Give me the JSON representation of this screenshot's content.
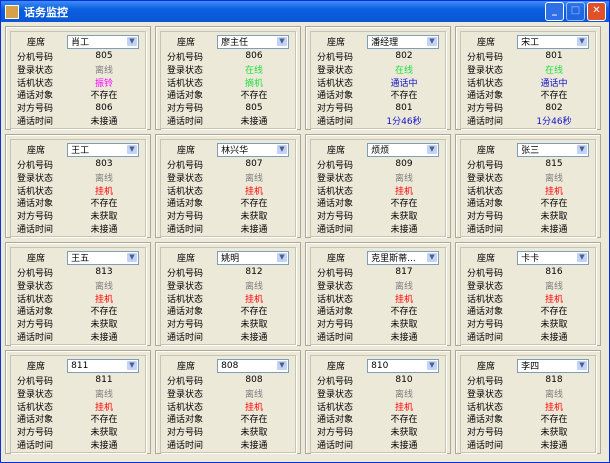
{
  "window": {
    "title": "话务监控",
    "icon": "java-cup-icon"
  },
  "labels": {
    "seat": "座席",
    "ext": "分机号码",
    "login": "登录状态",
    "phone": "话机状态",
    "target": "通话对象",
    "peer": "对方号码",
    "duration": "通话时间"
  },
  "colors": {
    "offline": "#808080",
    "online": "#22dd44",
    "ringing": "#ff00ff",
    "offhook": "#22dd44",
    "talking": "#1010cc",
    "hangup": "#ff0000",
    "default": "#000000"
  },
  "panels": [
    {
      "seat": "肖工",
      "ext": "805",
      "login": "离线",
      "login_c": "offline",
      "phone": "振铃",
      "phone_c": "ringing",
      "target": "不存在",
      "peer": "806",
      "duration": "未接通",
      "dur_c": "default"
    },
    {
      "seat": "廖主任",
      "ext": "806",
      "login": "在线",
      "login_c": "online",
      "phone": "摘机",
      "phone_c": "offhook",
      "target": "不存在",
      "peer": "805",
      "duration": "未接通",
      "dur_c": "default"
    },
    {
      "seat": "潘经理",
      "ext": "802",
      "login": "在线",
      "login_c": "online",
      "phone": "通话中",
      "phone_c": "talking",
      "target": "不存在",
      "peer": "801",
      "duration": "1分46秒",
      "dur_c": "talking"
    },
    {
      "seat": "宋工",
      "ext": "801",
      "login": "在线",
      "login_c": "online",
      "phone": "通话中",
      "phone_c": "talking",
      "target": "不存在",
      "peer": "802",
      "duration": "1分46秒",
      "dur_c": "talking"
    },
    {
      "seat": "王工",
      "ext": "803",
      "login": "离线",
      "login_c": "offline",
      "phone": "挂机",
      "phone_c": "hangup",
      "target": "不存在",
      "peer": "未获取",
      "duration": "未接通",
      "dur_c": "default"
    },
    {
      "seat": "林兴华",
      "ext": "807",
      "login": "离线",
      "login_c": "offline",
      "phone": "挂机",
      "phone_c": "hangup",
      "target": "不存在",
      "peer": "未获取",
      "duration": "未接通",
      "dur_c": "default"
    },
    {
      "seat": "烦烦",
      "ext": "809",
      "login": "离线",
      "login_c": "offline",
      "phone": "挂机",
      "phone_c": "hangup",
      "target": "不存在",
      "peer": "未获取",
      "duration": "未接通",
      "dur_c": "default"
    },
    {
      "seat": "张三",
      "ext": "815",
      "login": "离线",
      "login_c": "offline",
      "phone": "挂机",
      "phone_c": "hangup",
      "target": "不存在",
      "peer": "未获取",
      "duration": "未接通",
      "dur_c": "default"
    },
    {
      "seat": "王五",
      "ext": "813",
      "login": "离线",
      "login_c": "offline",
      "phone": "挂机",
      "phone_c": "hangup",
      "target": "不存在",
      "peer": "未获取",
      "duration": "未接通",
      "dur_c": "default"
    },
    {
      "seat": "姚明",
      "ext": "812",
      "login": "离线",
      "login_c": "offline",
      "phone": "挂机",
      "phone_c": "hangup",
      "target": "不存在",
      "peer": "未获取",
      "duration": "未接通",
      "dur_c": "default"
    },
    {
      "seat": "克里斯蒂...",
      "ext": "817",
      "login": "离线",
      "login_c": "offline",
      "phone": "挂机",
      "phone_c": "hangup",
      "target": "不存在",
      "peer": "未获取",
      "duration": "未接通",
      "dur_c": "default"
    },
    {
      "seat": "卡卡",
      "ext": "816",
      "login": "离线",
      "login_c": "offline",
      "phone": "挂机",
      "phone_c": "hangup",
      "target": "不存在",
      "peer": "未获取",
      "duration": "未接通",
      "dur_c": "default"
    },
    {
      "seat": "811",
      "ext": "811",
      "login": "离线",
      "login_c": "offline",
      "phone": "挂机",
      "phone_c": "hangup",
      "target": "不存在",
      "peer": "未获取",
      "duration": "未接通",
      "dur_c": "default"
    },
    {
      "seat": "808",
      "ext": "808",
      "login": "离线",
      "login_c": "offline",
      "phone": "挂机",
      "phone_c": "hangup",
      "target": "不存在",
      "peer": "未获取",
      "duration": "未接通",
      "dur_c": "default"
    },
    {
      "seat": "810",
      "ext": "810",
      "login": "离线",
      "login_c": "offline",
      "phone": "挂机",
      "phone_c": "hangup",
      "target": "不存在",
      "peer": "未获取",
      "duration": "未接通",
      "dur_c": "default"
    },
    {
      "seat": "李四",
      "ext": "818",
      "login": "离线",
      "login_c": "offline",
      "phone": "挂机",
      "phone_c": "hangup",
      "target": "不存在",
      "peer": "未获取",
      "duration": "未接通",
      "dur_c": "default"
    }
  ]
}
